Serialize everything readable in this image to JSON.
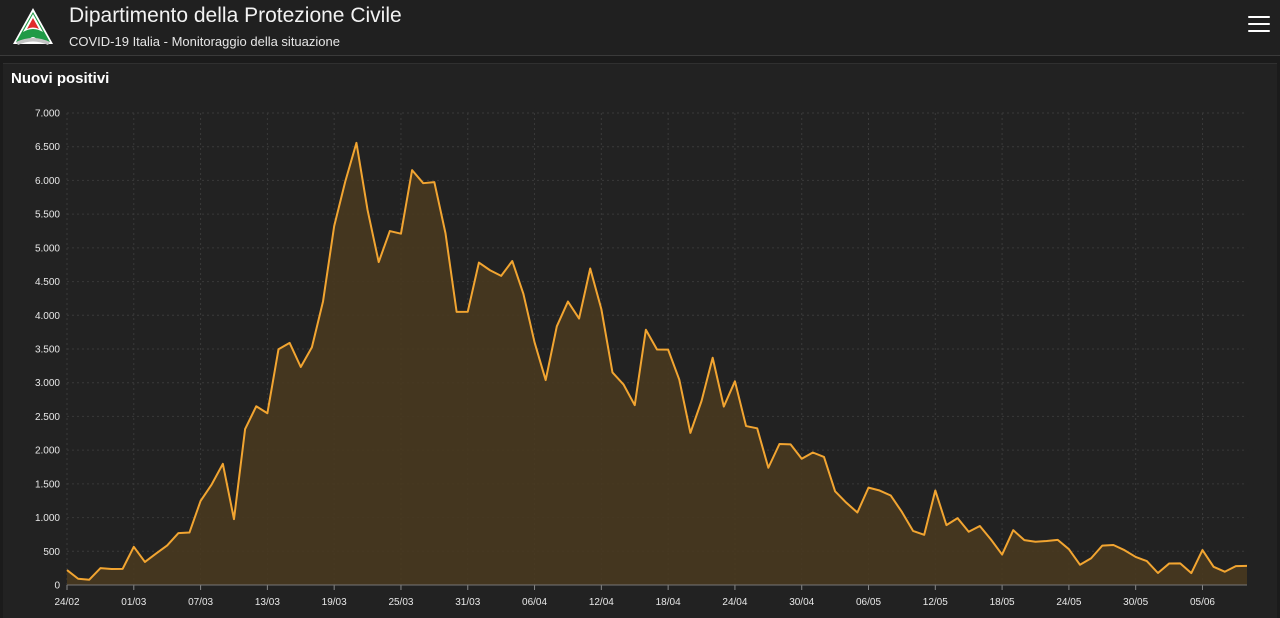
{
  "header": {
    "title": "Dipartimento della Protezione Civile",
    "subtitle": "COVID-19 Italia - Monitoraggio della situazione",
    "logo_icon": "protezione-civile-logo",
    "menu_icon": "hamburger-menu-icon"
  },
  "panel": {
    "title": "Nuovi positivi"
  },
  "colors": {
    "line": "#f2a531",
    "area": "#4a3a1f",
    "grid": "#3a3a3a",
    "background": "#222222"
  },
  "chart_data": {
    "type": "area",
    "title": "Nuovi positivi",
    "xlabel": "",
    "ylabel": "",
    "ylim": [
      0,
      7000
    ],
    "yticks": [
      0,
      500,
      1000,
      1500,
      2000,
      2500,
      3000,
      3500,
      4000,
      4500,
      5000,
      5500,
      6000,
      6500,
      7000
    ],
    "ytick_labels": [
      "0",
      "500",
      "1.000",
      "1.500",
      "2.000",
      "2.500",
      "3.000",
      "3.500",
      "4.000",
      "4.500",
      "5.000",
      "5.500",
      "6.000",
      "6.500",
      "7.000"
    ],
    "xtick_labels": [
      "24/02",
      "01/03",
      "07/03",
      "13/03",
      "19/03",
      "25/03",
      "31/03",
      "06/04",
      "12/04",
      "18/04",
      "24/04",
      "30/04",
      "06/05",
      "12/05",
      "18/05",
      "24/05",
      "30/05",
      "05/06"
    ],
    "xtick_step_days": 6,
    "grid": true,
    "legend": "none",
    "series": [
      {
        "start": "24/02",
        "values": [
          221,
          93,
          78,
          250,
          238,
          240,
          566,
          342,
          466,
          587,
          769,
          778,
          1247,
          1492,
          1797,
          977,
          2313,
          2651,
          2547,
          3497,
          3590,
          3233,
          3526,
          4207,
          5322,
          5986,
          6557,
          5560,
          4789,
          5249,
          5210,
          6153,
          5959,
          5974,
          5217,
          4050,
          4053,
          4782,
          4668,
          4585,
          4805,
          4316,
          3599,
          3039,
          3836,
          4204,
          3951,
          4694,
          4092,
          3153,
          2972,
          2667,
          3786,
          3493,
          3491,
          3047,
          2256,
          2729,
          3370,
          2646,
          3021,
          2357,
          2324,
          1739,
          2091,
          2086,
          1872,
          1965,
          1900,
          1389,
          1221,
          1075,
          1444,
          1401,
          1327,
          1083,
          802,
          744,
          1402,
          888,
          992,
          789,
          875,
          675,
          451,
          813,
          665,
          642,
          652,
          669,
          531,
          300,
          397,
          584,
          593,
          516,
          416,
          355,
          178,
          318,
          321,
          177,
          518,
          270,
          197,
          280,
          283
        ]
      }
    ]
  }
}
